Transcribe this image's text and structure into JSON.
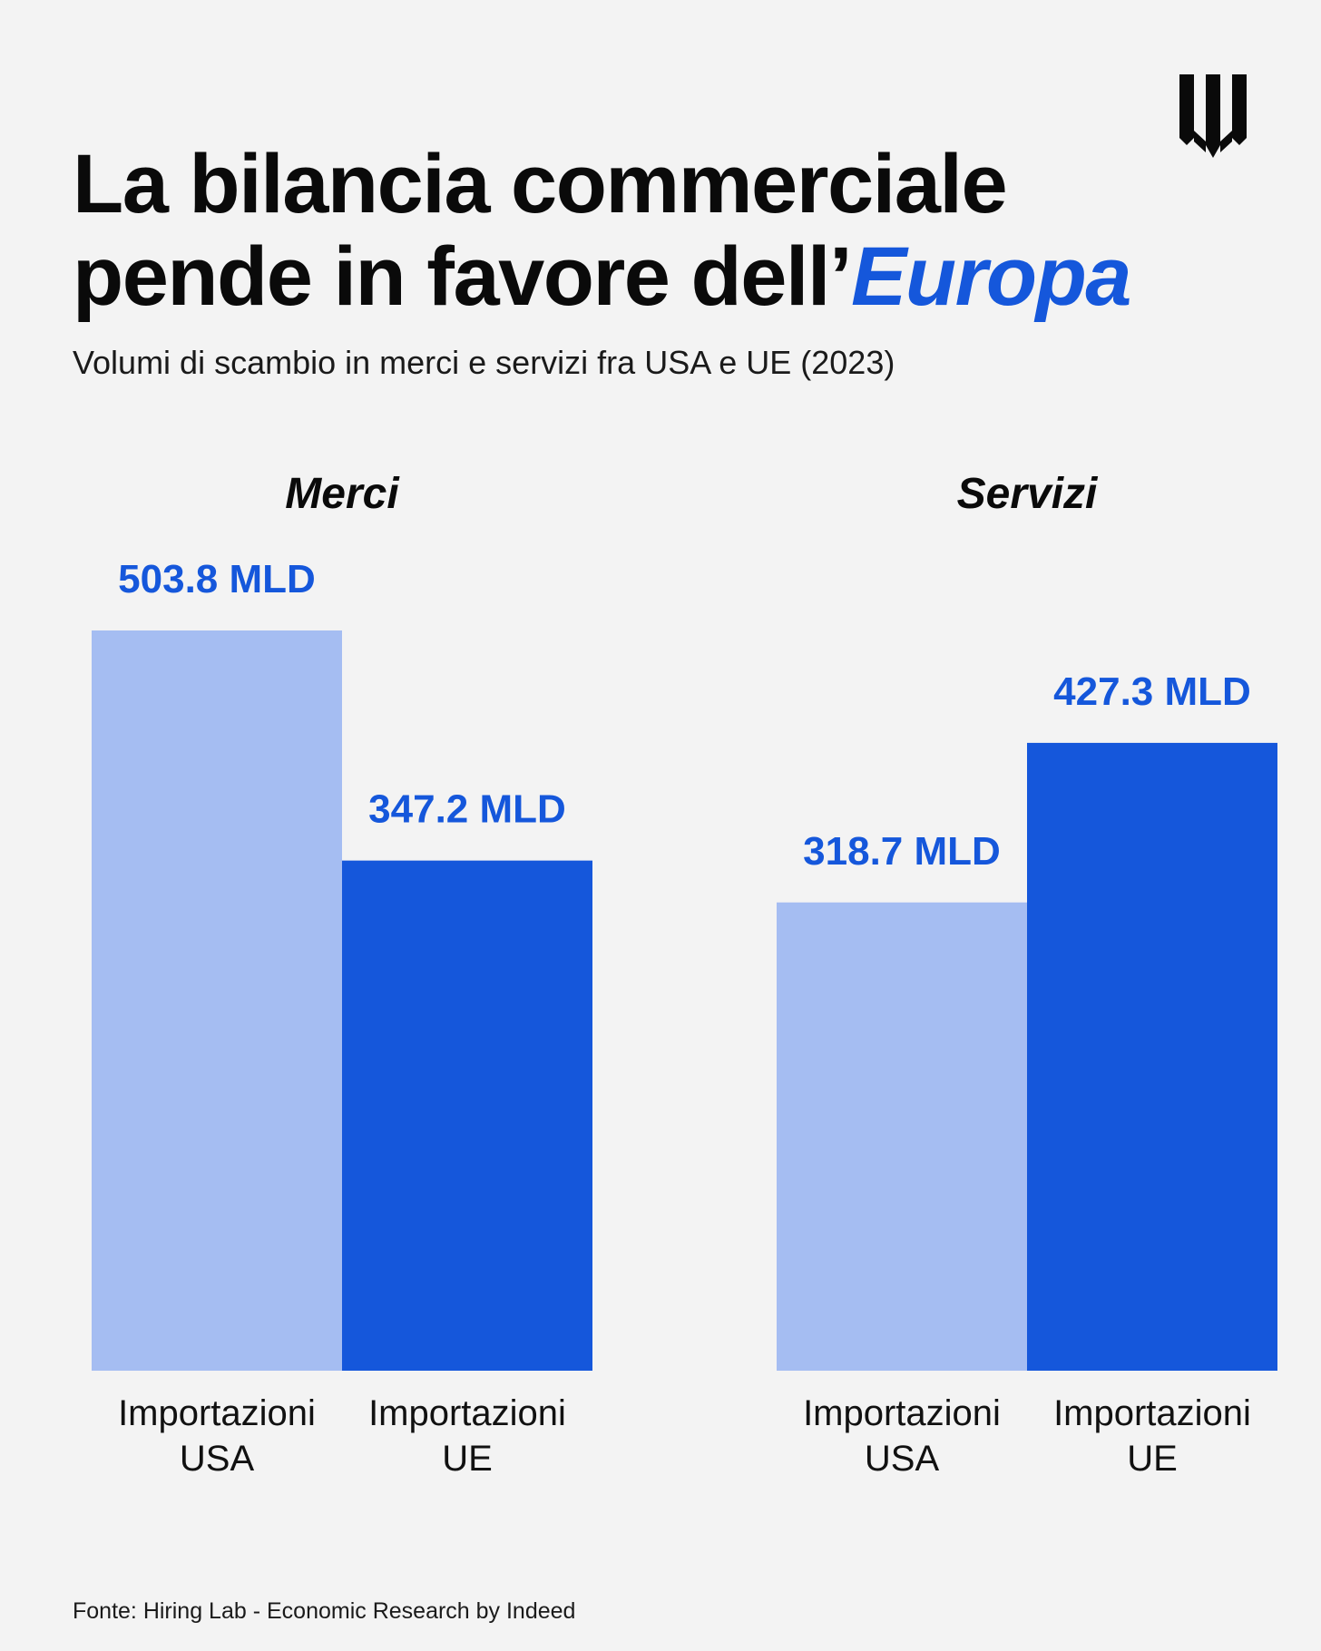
{
  "title": {
    "line1": "La bilancia commerciale",
    "line2_prefix": "pende in favore dell’",
    "line2_accent": "Europa"
  },
  "subtitle": "Volumi di scambio in merci e servizi fra USA e UE (2023)",
  "source": "Fonte: Hiring Lab - Economic Research by Indeed",
  "logo": {
    "icon": "w-shield-logo-icon"
  },
  "colors": {
    "light_bar": "#a5bdf2",
    "dark_bar": "#1557db",
    "accent": "#1557db",
    "background": "#f3f3f3"
  },
  "chart_data": {
    "type": "bar",
    "title": "Volumi di scambio in merci e servizi fra USA e UE (2023)",
    "groups": [
      {
        "name": "Merci",
        "bars": [
          {
            "category_line1": "Importazioni",
            "category_line2": "USA",
            "value": 503.8,
            "label": "503.8 MLD",
            "style": "light"
          },
          {
            "category_line1": "Importazioni",
            "category_line2": "UE",
            "value": 347.2,
            "label": "347.2 MLD",
            "style": "dark"
          }
        ]
      },
      {
        "name": "Servizi",
        "bars": [
          {
            "category_line1": "Importazioni",
            "category_line2": "USA",
            "value": 318.7,
            "label": "318.7 MLD",
            "style": "light"
          },
          {
            "category_line1": "Importazioni",
            "category_line2": "UE",
            "value": 427.3,
            "label": "427.3 MLD",
            "style": "dark"
          }
        ]
      }
    ],
    "unit": "MLD",
    "ylim": [
      0,
      503.8
    ]
  }
}
